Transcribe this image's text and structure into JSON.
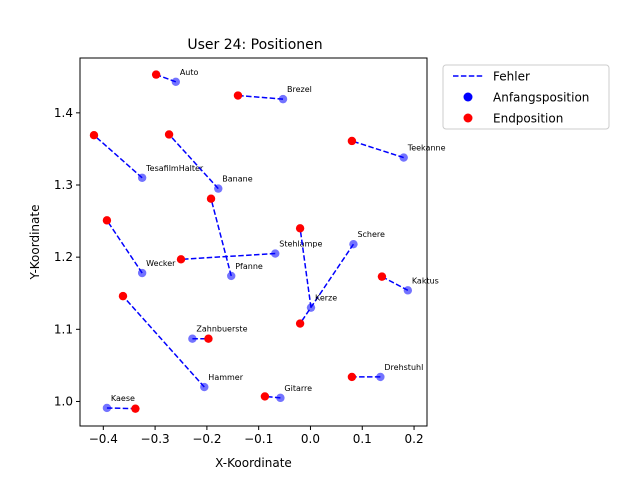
{
  "chart_data": {
    "type": "scatter",
    "title": "User 24: Positionen",
    "xlabel": "X-Koordinate",
    "ylabel": "Y-Koordinate",
    "xlim": [
      -0.445,
      0.225
    ],
    "ylim": [
      0.966,
      1.476
    ],
    "xticks": [
      -0.4,
      -0.3,
      -0.2,
      -0.1,
      0.0,
      0.1,
      0.2
    ],
    "xtick_labels": [
      "−0.4",
      "−0.3",
      "−0.2",
      "−0.1",
      "0.0",
      "0.1",
      "0.2"
    ],
    "yticks": [
      1.0,
      1.1,
      1.2,
      1.3,
      1.4
    ],
    "ytick_labels": [
      "1.0",
      "1.1",
      "1.2",
      "1.3",
      "1.4"
    ],
    "grid": false,
    "legend_position": "outside-top-right",
    "legend": [
      {
        "label": "Fehler",
        "kind": "dashed-line",
        "color": "#0000ff"
      },
      {
        "label": "Anfangsposition",
        "kind": "marker",
        "color": "#0000ff"
      },
      {
        "label": "Endposition",
        "kind": "marker",
        "color": "#ff0000"
      }
    ],
    "colors": {
      "start": "#0000ff",
      "end": "#ff0000",
      "error": "#0000ff"
    },
    "series": [
      {
        "name": "Fehler",
        "kind": "dashed-line"
      },
      {
        "name": "Anfangsposition",
        "kind": "scatter"
      },
      {
        "name": "Endposition",
        "kind": "scatter"
      }
    ],
    "objects": [
      {
        "name": "Auto",
        "start": [
          -0.26,
          1.443
        ],
        "end": [
          -0.298,
          1.453
        ]
      },
      {
        "name": "Brezel",
        "start": [
          -0.053,
          1.419
        ],
        "end": [
          -0.14,
          1.424
        ]
      },
      {
        "name": "Teekanne",
        "start": [
          0.18,
          1.338
        ],
        "end": [
          0.08,
          1.361
        ]
      },
      {
        "name": "TesafilmHalter",
        "start": [
          -0.325,
          1.31
        ],
        "end": [
          -0.418,
          1.369
        ]
      },
      {
        "name": "Banane",
        "start": [
          -0.178,
          1.295
        ],
        "end": [
          -0.273,
          1.37
        ]
      },
      {
        "name": "Stehlampe",
        "start": [
          -0.068,
          1.205
        ],
        "end": [
          -0.25,
          1.197
        ]
      },
      {
        "name": "Pfanne",
        "start": [
          -0.153,
          1.174
        ],
        "end": [
          -0.192,
          1.281
        ]
      },
      {
        "name": "Wecker",
        "start": [
          -0.325,
          1.178
        ],
        "end": [
          -0.393,
          1.251
        ]
      },
      {
        "name": "Schere",
        "start": [
          0.083,
          1.218
        ],
        "end": [
          -0.02,
          1.108
        ]
      },
      {
        "name": "Kaktus",
        "start": [
          0.188,
          1.154
        ],
        "end": [
          0.138,
          1.173
        ]
      },
      {
        "name": "Kerze",
        "start": [
          0.001,
          1.13
        ],
        "end": [
          -0.02,
          1.24
        ]
      },
      {
        "name": "Zahnbuerste",
        "start": [
          -0.228,
          1.087
        ],
        "end": [
          -0.197,
          1.087
        ]
      },
      {
        "name": "Drehstuhl",
        "start": [
          0.135,
          1.034
        ],
        "end": [
          0.08,
          1.034
        ]
      },
      {
        "name": "Hammer",
        "start": [
          -0.205,
          1.02
        ],
        "end": [
          -0.362,
          1.146
        ]
      },
      {
        "name": "Gitarre",
        "start": [
          -0.058,
          1.005
        ],
        "end": [
          -0.088,
          1.007
        ]
      },
      {
        "name": "Kaese",
        "start": [
          -0.393,
          0.991
        ],
        "end": [
          -0.338,
          0.99
        ]
      }
    ]
  }
}
